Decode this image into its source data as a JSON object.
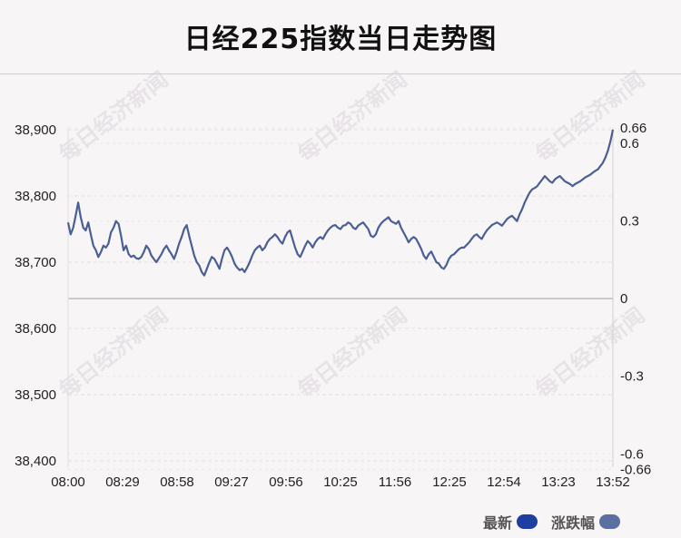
{
  "title": "日经225指数当日走势图",
  "watermark": "每日经济新闻",
  "legend": [
    {
      "label": "最新",
      "color": "#1e3fa0"
    },
    {
      "label": "涨跌幅",
      "color": "#5b6fa0"
    }
  ],
  "chart_data": {
    "type": "line",
    "left_axis": {
      "ylim": [
        38390,
        38910
      ],
      "ticks": [
        "38,900",
        "38,800",
        "38,700",
        "38,600",
        "38,500",
        "38,400"
      ],
      "tick_values": [
        38900,
        38800,
        38700,
        38600,
        38500,
        38400
      ]
    },
    "right_axis": {
      "ticks": [
        "0.66",
        "0.6",
        "0.3",
        "0",
        "-0.3",
        "-0.6",
        "-0.66"
      ],
      "tick_values": [
        0.66,
        0.6,
        0.3,
        0,
        -0.3,
        -0.6,
        -0.66
      ]
    },
    "baseline_value": 38645,
    "x_ticks": [
      "08:00",
      "08:29",
      "08:58",
      "09:27",
      "09:56",
      "10:25",
      "11:56",
      "12:25",
      "12:54",
      "13:23",
      "13:52"
    ],
    "series": [
      {
        "color": "#4a5f94",
        "values": [
          38760,
          38742,
          38752,
          38770,
          38790,
          38768,
          38752,
          38748,
          38760,
          38742,
          38725,
          38718,
          38708,
          38715,
          38725,
          38722,
          38728,
          38745,
          38752,
          38762,
          38758,
          38740,
          38718,
          38725,
          38712,
          38708,
          38710,
          38706,
          38705,
          38708,
          38715,
          38725,
          38720,
          38710,
          38705,
          38700,
          38706,
          38712,
          38720,
          38725,
          38718,
          38712,
          38705,
          38715,
          38728,
          38738,
          38750,
          38756,
          38740,
          38725,
          38710,
          38700,
          38695,
          38685,
          38680,
          38690,
          38700,
          38708,
          38705,
          38698,
          38690,
          38705,
          38718,
          38722,
          38716,
          38708,
          38698,
          38692,
          38688,
          38690,
          38685,
          38692,
          38700,
          38710,
          38718,
          38722,
          38725,
          38718,
          38722,
          38730,
          38735,
          38738,
          38742,
          38738,
          38732,
          38728,
          38738,
          38745,
          38748,
          38735,
          38722,
          38712,
          38708,
          38716,
          38725,
          38732,
          38728,
          38722,
          38730,
          38735,
          38738,
          38735,
          38742,
          38748,
          38752,
          38755,
          38756,
          38752,
          38750,
          38755,
          38756,
          38760,
          38758,
          38752,
          38750,
          38755,
          38758,
          38760,
          38755,
          38750,
          38740,
          38738,
          38742,
          38752,
          38758,
          38762,
          38765,
          38768,
          38762,
          38760,
          38758,
          38762,
          38752,
          38745,
          38738,
          38730,
          38735,
          38738,
          38735,
          38728,
          38720,
          38710,
          38705,
          38712,
          38716,
          38708,
          38700,
          38698,
          38692,
          38690,
          38696,
          38705,
          38710,
          38712,
          38716,
          38720,
          38722,
          38722,
          38726,
          38730,
          38735,
          38740,
          38742,
          38738,
          38735,
          38742,
          38748,
          38752,
          38756,
          38758,
          38760,
          38758,
          38755,
          38760,
          38765,
          38768,
          38770,
          38766,
          38762,
          38772,
          38780,
          38790,
          38798,
          38805,
          38810,
          38812,
          38815,
          38820,
          38825,
          38830,
          38826,
          38822,
          38820,
          38825,
          38828,
          38830,
          38826,
          38822,
          38820,
          38818,
          38815,
          38818,
          38820,
          38822,
          38825,
          38828,
          38830,
          38832,
          38835,
          38838,
          38840,
          38845,
          38850,
          38858,
          38868,
          38882,
          38900
        ]
      }
    ]
  }
}
